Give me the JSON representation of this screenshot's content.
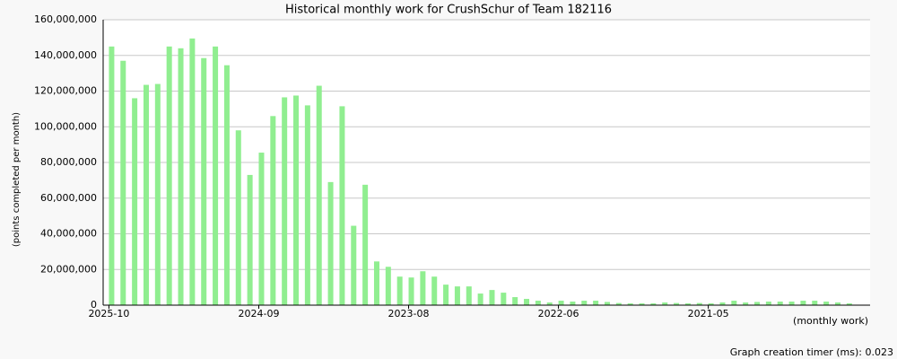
{
  "chart_data": {
    "type": "bar",
    "title": "Historical monthly work for CrushSchur of Team 182116",
    "y_label": "(points completed per month)",
    "x_label": "(monthly work)",
    "footer": "Graph creation timer (ms): 0.023",
    "color": "#90ee90",
    "grid": true,
    "categories": [
      "2025-10",
      null,
      null,
      null,
      null,
      null,
      null,
      null,
      null,
      null,
      null,
      null,
      null,
      "2024-09",
      null,
      null,
      null,
      null,
      null,
      null,
      null,
      null,
      null,
      null,
      null,
      null,
      "2023-08",
      null,
      null,
      null,
      null,
      null,
      null,
      null,
      null,
      null,
      null,
      null,
      null,
      "2022-06",
      null,
      null,
      null,
      null,
      null,
      null,
      null,
      null,
      null,
      null,
      null,
      null,
      "2021-05",
      null,
      null,
      null,
      null,
      null,
      null,
      null,
      null,
      null,
      null,
      null,
      null
    ],
    "values": [
      145000000,
      137000000,
      116000000,
      123500000,
      124000000,
      145000000,
      144000000,
      149500000,
      138500000,
      145000000,
      134500000,
      98000000,
      73000000,
      85500000,
      106000000,
      116500000,
      117500000,
      112000000,
      123000000,
      69000000,
      111500000,
      44500000,
      67500000,
      24500000,
      21500000,
      16000000,
      15500000,
      19000000,
      16000000,
      11500000,
      10500000,
      10500000,
      6500000,
      8500000,
      7000000,
      4500000,
      3500000,
      2500000,
      1500000,
      2500000,
      2000000,
      2500000,
      2500000,
      1800000,
      1200000,
      1000000,
      1000000,
      1000000,
      1500000,
      1200000,
      1000000,
      1200000,
      1000000,
      1500000,
      2500000,
      1500000,
      1800000,
      2000000,
      2000000,
      2000000,
      2500000,
      2500000,
      2000000,
      1500000,
      1000000
    ],
    "ylim": [
      0,
      160000000
    ],
    "yticks": [
      0,
      {
        "value": 20000000,
        "label": "20,000,000"
      },
      {
        "value": 40000000,
        "label": "40,000,000"
      },
      {
        "value": 60000000,
        "label": "60,000,000"
      },
      {
        "value": 80000000,
        "label": "80,000,000"
      },
      {
        "value": 100000000,
        "label": "100,000,000"
      },
      {
        "value": 120000000,
        "label": "120,000,000"
      },
      {
        "value": 140000000,
        "label": "140,000,000"
      },
      {
        "value": 160000000,
        "label": "160,000,000"
      }
    ]
  }
}
